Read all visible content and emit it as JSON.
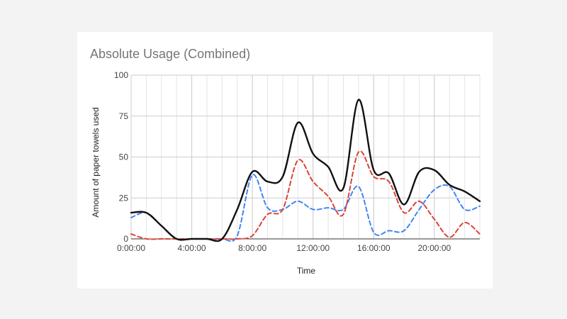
{
  "chart_data": {
    "type": "line",
    "title": "Absolute Usage (Combined)",
    "xlabel": "Time",
    "ylabel": "Amount of paper towels used",
    "xlim": [
      0,
      23
    ],
    "ylim": [
      0,
      100
    ],
    "x_ticks": [
      {
        "value": 0,
        "label": "0:00:00"
      },
      {
        "value": 4,
        "label": "4:00:00"
      },
      {
        "value": 8,
        "label": "8:00:00"
      },
      {
        "value": 12,
        "label": "12:00:00"
      },
      {
        "value": 16,
        "label": "16:00:00"
      },
      {
        "value": 20,
        "label": "20:00:00"
      }
    ],
    "y_ticks": [
      0,
      25,
      50,
      75,
      100
    ],
    "grid": true,
    "legend": "none",
    "x": [
      0,
      1,
      2,
      3,
      4,
      5,
      6,
      7,
      8,
      9,
      10,
      11,
      12,
      13,
      14,
      15,
      16,
      17,
      18,
      19,
      20,
      21,
      22,
      23
    ],
    "series": [
      {
        "color": "#4285f4",
        "dash": true,
        "values": [
          13,
          16,
          8,
          0,
          0,
          0,
          0,
          2,
          39,
          19,
          18,
          23,
          18,
          19,
          18,
          32,
          4,
          5,
          5,
          18,
          30,
          32,
          18,
          20
        ]
      },
      {
        "color": "#db4437",
        "dash": true,
        "values": [
          3,
          0,
          0,
          0,
          0,
          0,
          0,
          0,
          2,
          15,
          18,
          48,
          35,
          26,
          15,
          53,
          38,
          35,
          16,
          23,
          12,
          1,
          10,
          3
        ]
      },
      {
        "color": "#111111",
        "dash": false,
        "values": [
          16,
          16,
          8,
          0,
          0,
          0,
          0,
          18,
          41,
          35,
          38,
          71,
          52,
          44,
          31,
          85,
          42,
          40,
          21,
          41,
          42,
          33,
          29,
          23
        ]
      }
    ]
  }
}
